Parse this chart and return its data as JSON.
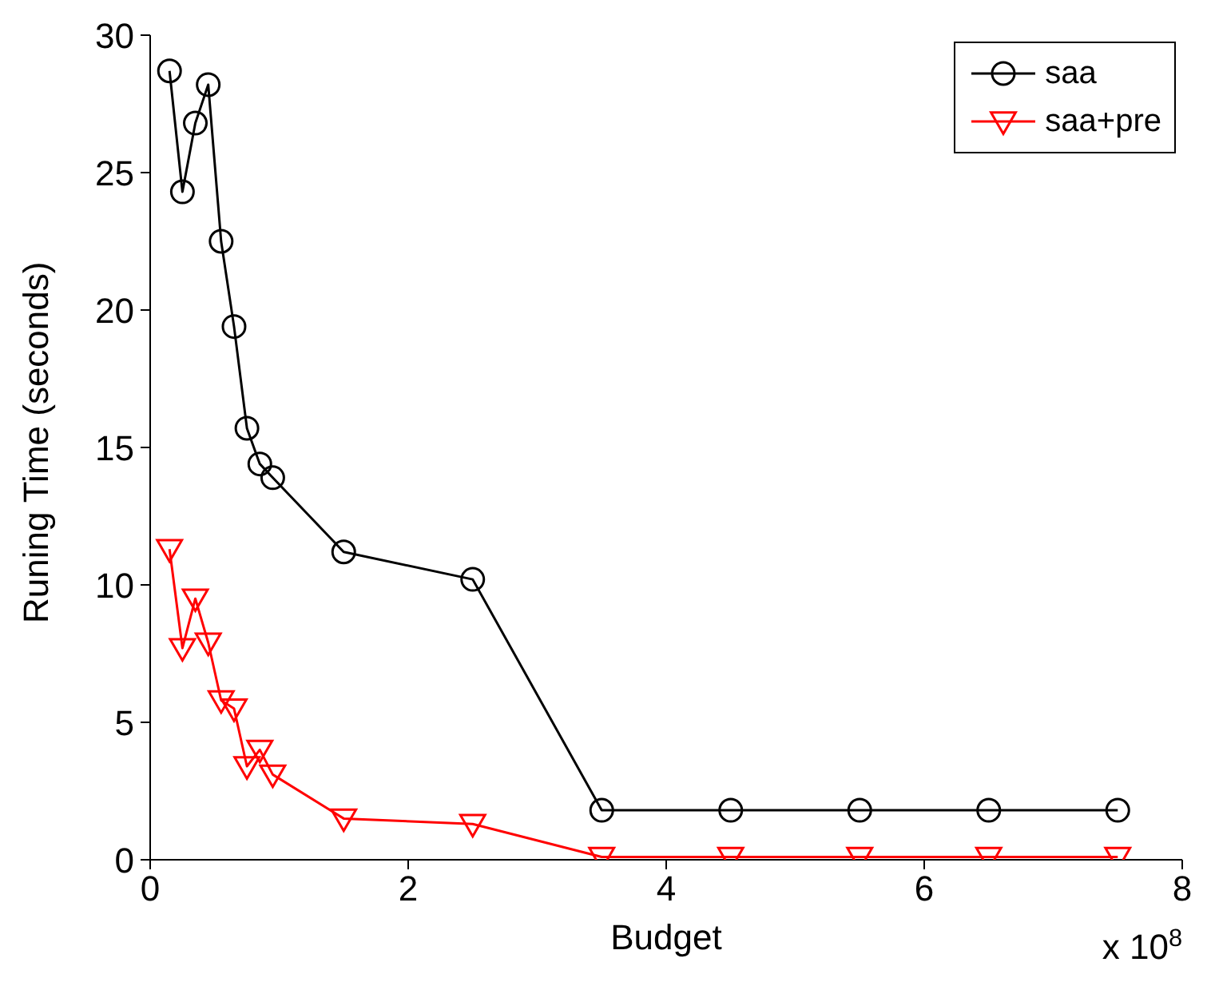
{
  "chart_data": {
    "type": "line",
    "xlabel": "Budget",
    "ylabel": "Runing Time (seconds)",
    "annotations": [
      "x 10$^{8}$"
    ],
    "x": [
      0.15,
      0.25,
      0.35,
      0.45,
      0.55,
      0.65,
      0.75,
      0.85,
      0.95,
      1.5,
      2.5,
      3.5,
      4.5,
      5.5,
      6.5,
      7.5
    ],
    "series": [
      {
        "name": "saa",
        "color": "#000000",
        "marker": "circle",
        "values": [
          28.7,
          24.3,
          26.8,
          28.2,
          22.5,
          19.4,
          15.7,
          14.4,
          13.9,
          11.2,
          10.2,
          1.8,
          1.8,
          1.8,
          1.8,
          1.8
        ]
      },
      {
        "name": "saa+pre",
        "color": "#ff0000",
        "marker": "triangle",
        "values": [
          11.3,
          7.7,
          9.5,
          7.9,
          5.8,
          5.5,
          3.4,
          4.0,
          3.1,
          1.5,
          1.3,
          0.1,
          0.1,
          0.1,
          0.1,
          0.1
        ]
      }
    ],
    "xlim": [
      0,
      8
    ],
    "xticks": [
      0,
      2,
      4,
      6,
      8
    ],
    "ylim": [
      0,
      30
    ],
    "yticks": [
      0,
      5,
      10,
      15,
      20,
      25,
      30
    ],
    "grid": false,
    "legend": "top right",
    "line_style": "solid"
  }
}
